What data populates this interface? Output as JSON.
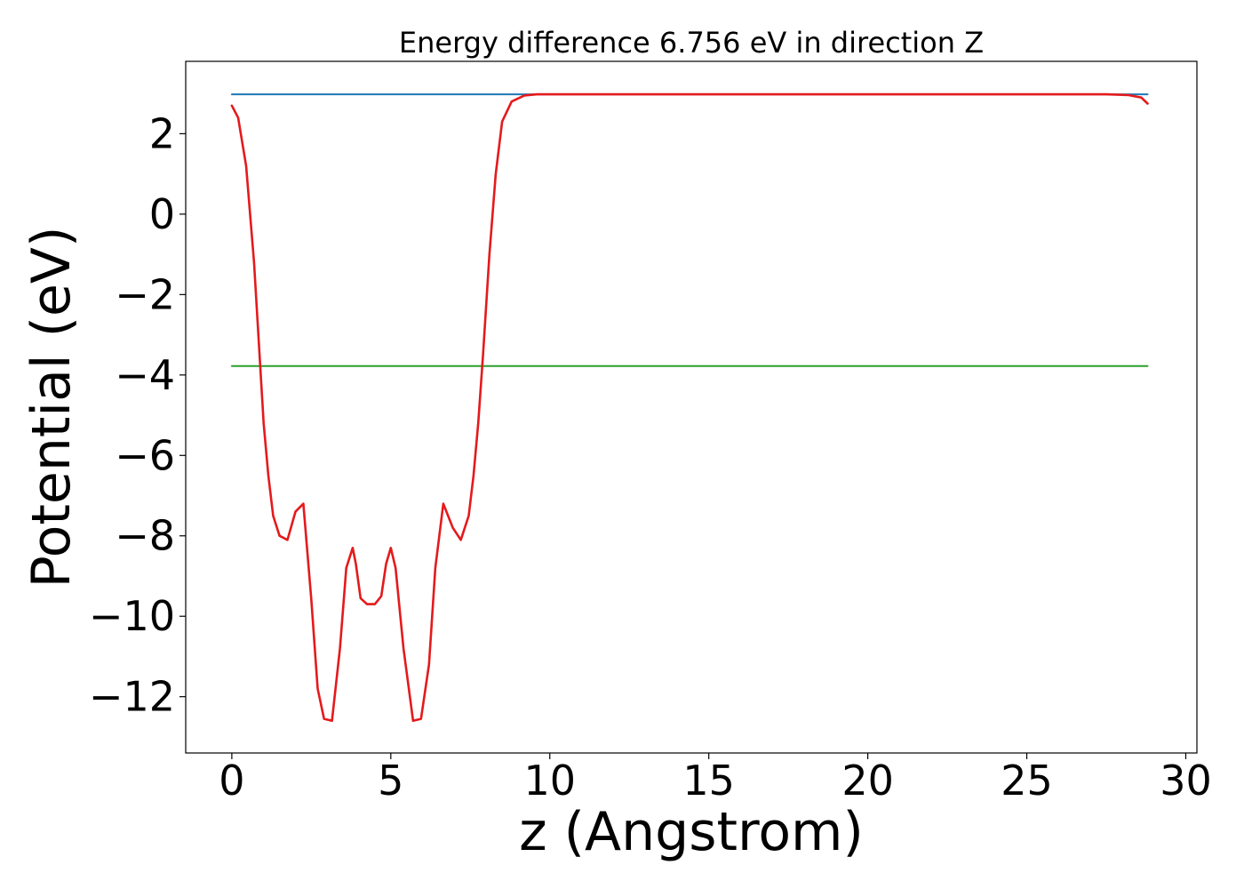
{
  "chart_data": {
    "type": "line",
    "title": "Energy difference 6.756 eV in direction Z",
    "xlabel": "z (Angstrom)",
    "ylabel": "Potential (eV)",
    "xlim": [
      -1.45,
      30.35
    ],
    "ylim": [
      -13.4,
      3.8
    ],
    "xticks": [
      0,
      5,
      10,
      15,
      20,
      25,
      30
    ],
    "xtick_labels": [
      "0",
      "5",
      "10",
      "15",
      "20",
      "25",
      "30"
    ],
    "yticks": [
      2,
      0,
      -2,
      -4,
      -6,
      -8,
      -10,
      -12
    ],
    "ytick_labels": [
      "2",
      "0",
      "−2",
      "−4",
      "−6",
      "−8",
      "−10",
      "−12"
    ],
    "grid": false,
    "legend": "none",
    "series": [
      {
        "color": "#1f77b4",
        "x": [
          0,
          28.8
        ],
        "y": [
          2.98,
          2.98
        ]
      },
      {
        "color": "#2ca02c",
        "x": [
          0,
          28.8
        ],
        "y": [
          -3.776,
          -3.776
        ]
      },
      {
        "color": "#e41a1c",
        "x": [
          0,
          0.2,
          0.45,
          0.7,
          0.85,
          1.0,
          1.15,
          1.3,
          1.5,
          1.75,
          2.0,
          2.25,
          2.5,
          2.7,
          2.9,
          3.15,
          3.4,
          3.6,
          3.8,
          3.9,
          4.05,
          4.25,
          4.5,
          4.7,
          4.85,
          5.0,
          5.15,
          5.4,
          5.7,
          5.95,
          6.2,
          6.4,
          6.65,
          6.95,
          7.2,
          7.45,
          7.6,
          7.75,
          7.9,
          8.1,
          8.3,
          8.5,
          8.8,
          9.2,
          9.6,
          10.0,
          12.0,
          15.0,
          20.0,
          25.0,
          27.5,
          28.2,
          28.6,
          28.8
        ],
        "y": [
          2.7,
          2.4,
          1.2,
          -1.2,
          -3.2,
          -5.2,
          -6.5,
          -7.5,
          -8.0,
          -8.1,
          -7.4,
          -7.2,
          -9.6,
          -11.8,
          -12.55,
          -12.6,
          -10.8,
          -8.8,
          -8.3,
          -8.7,
          -9.55,
          -9.7,
          -9.7,
          -9.5,
          -8.7,
          -8.3,
          -8.8,
          -10.8,
          -12.6,
          -12.55,
          -11.2,
          -8.8,
          -7.2,
          -7.8,
          -8.1,
          -7.5,
          -6.5,
          -5.2,
          -3.5,
          -1.0,
          1.0,
          2.3,
          2.8,
          2.95,
          2.98,
          2.98,
          2.98,
          2.98,
          2.98,
          2.98,
          2.98,
          2.96,
          2.9,
          2.75
        ]
      }
    ]
  }
}
